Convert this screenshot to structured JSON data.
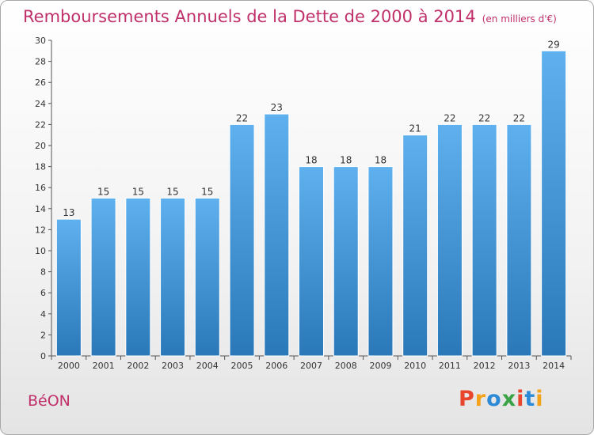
{
  "header": {
    "title": "Remboursements Annuels de la Dette de 2000 à 2014",
    "unit": "(en milliers d'€)"
  },
  "footer": {
    "commune": "BéON",
    "brand": "Proxiti"
  },
  "colors": {
    "title": "#c0306a",
    "bar_top": "#5fb0ee",
    "bar_bottom": "#2a78b8",
    "logo": [
      "#e8452c",
      "#f3a21a",
      "#2d8ad6",
      "#3aa345",
      "#e8452c",
      "#2d8ad6",
      "#f3a21a"
    ]
  },
  "chart_data": {
    "type": "bar",
    "title": "Remboursements Annuels de la Dette de 2000 à 2014",
    "subtitle": "(en milliers d'€)",
    "xlabel": "",
    "ylabel": "",
    "categories": [
      "2000",
      "2001",
      "2002",
      "2003",
      "2004",
      "2005",
      "2006",
      "2007",
      "2008",
      "2009",
      "2010",
      "2011",
      "2012",
      "2013",
      "2014"
    ],
    "values": [
      13,
      15,
      15,
      15,
      15,
      22,
      23,
      18,
      18,
      18,
      21,
      22,
      22,
      22,
      29
    ],
    "ylim": [
      0,
      30
    ],
    "yticks": [
      0,
      2,
      4,
      6,
      8,
      10,
      12,
      14,
      16,
      18,
      20,
      22,
      24,
      26,
      28,
      30
    ],
    "grid": false,
    "data_labels": true
  }
}
